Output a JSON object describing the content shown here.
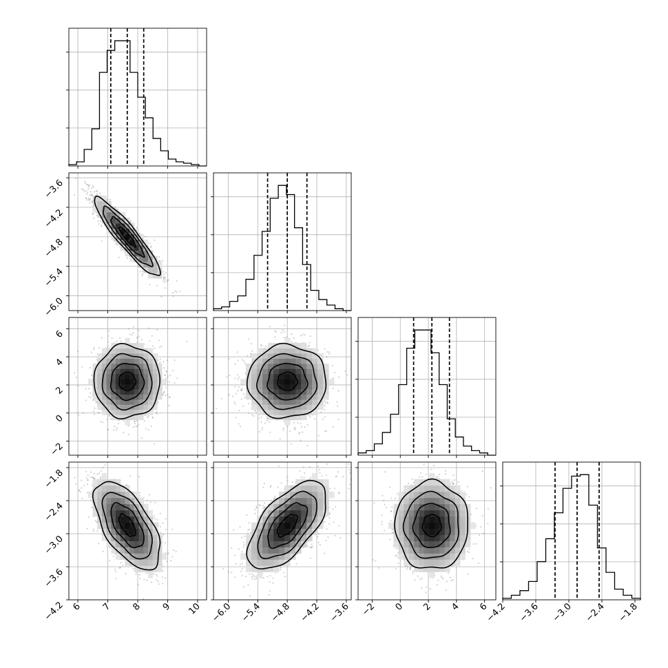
{
  "chart_data": {
    "type": "corner",
    "n_params": 4,
    "params": [
      {
        "index": 0,
        "median": 7.65,
        "q16": 7.1,
        "q84": 8.2,
        "sd": 0.55,
        "range": [
          5.7,
          10.3
        ],
        "ticks": [
          6,
          7,
          8,
          9,
          10
        ],
        "tick_labels": [
          "6",
          "7",
          "8",
          "9",
          "10"
        ],
        "hist_counts": [
          1,
          3,
          12,
          27,
          68,
          84,
          91,
          91,
          68,
          50,
          35,
          20,
          11,
          5,
          3,
          2,
          1,
          0
        ]
      },
      {
        "index": 1,
        "median": -4.8,
        "q16": -5.2,
        "q84": -4.4,
        "sd": 0.4,
        "range": [
          -6.3,
          -3.5
        ],
        "ticks": [
          -6.0,
          -5.4,
          -4.8,
          -4.2,
          -3.6
        ],
        "tick_labels": [
          "−6.0",
          "−5.4",
          "−4.8",
          "−4.2",
          "−3.6"
        ],
        "hist_counts": [
          1,
          2,
          5,
          8,
          17,
          30,
          43,
          61,
          68,
          63,
          45,
          25,
          11,
          6,
          3,
          1,
          0
        ]
      },
      {
        "index": 2,
        "median": 2.25,
        "q16": 0.95,
        "q84": 3.5,
        "sd": 1.3,
        "range": [
          -3.0,
          6.8
        ],
        "ticks": [
          -2,
          0,
          2,
          4,
          6
        ],
        "tick_labels": [
          "−2",
          "0",
          "2",
          "4",
          "6"
        ],
        "hist_counts": [
          1,
          2,
          5,
          10,
          18,
          31,
          47,
          55,
          55,
          45,
          31,
          16,
          8,
          4,
          2,
          1,
          0
        ]
      },
      {
        "index": 3,
        "median": -2.85,
        "q16": -3.25,
        "q84": -2.45,
        "sd": 0.4,
        "range": [
          -4.2,
          -1.7
        ],
        "ticks": [
          -4.2,
          -3.6,
          -3.0,
          -2.4,
          -1.8
        ],
        "tick_labels": [
          "−4.2",
          "−3.6",
          "−3.0",
          "−2.4",
          "−1.8"
        ],
        "hist_counts": [
          1,
          3,
          6,
          12,
          25,
          40,
          57,
          73,
          81,
          82,
          62,
          34,
          18,
          7,
          3,
          1
        ]
      }
    ],
    "correlations": [
      {
        "pair": [
          0,
          1
        ],
        "rho": -0.92
      },
      {
        "pair": [
          0,
          2
        ],
        "rho": 0.0
      },
      {
        "pair": [
          1,
          2
        ],
        "rho": 0.0
      },
      {
        "pair": [
          0,
          3
        ],
        "rho": -0.6
      },
      {
        "pair": [
          1,
          3
        ],
        "rho": 0.62
      },
      {
        "pair": [
          2,
          3
        ],
        "rho": 0.0
      }
    ],
    "contour_levels_sigma": [
      0.5,
      1.0,
      1.5,
      2.0
    ],
    "grid": true,
    "title": "",
    "xlabel": "",
    "ylabel": ""
  }
}
